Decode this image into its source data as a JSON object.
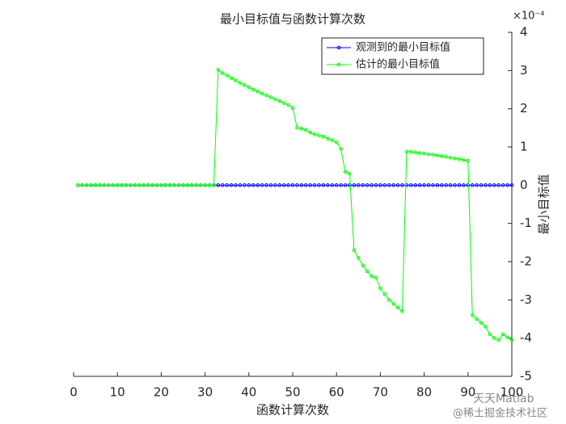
{
  "chart_data": {
    "type": "line",
    "title": "最小目标值与函数计算次数",
    "xlabel": "函数计算次数",
    "ylabel": "最小目标值",
    "y_exponent_label": "×10⁻⁴",
    "x": [
      1,
      2,
      3,
      4,
      5,
      6,
      7,
      8,
      9,
      10,
      11,
      12,
      13,
      14,
      15,
      16,
      17,
      18,
      19,
      20,
      21,
      22,
      23,
      24,
      25,
      26,
      27,
      28,
      29,
      30,
      31,
      32,
      33,
      34,
      35,
      36,
      37,
      38,
      39,
      40,
      41,
      42,
      43,
      44,
      45,
      46,
      47,
      48,
      49,
      50,
      51,
      52,
      53,
      54,
      55,
      56,
      57,
      58,
      59,
      60,
      61,
      62,
      63,
      64,
      65,
      66,
      67,
      68,
      69,
      70,
      71,
      72,
      73,
      74,
      75,
      76,
      77,
      78,
      79,
      80,
      81,
      82,
      83,
      84,
      85,
      86,
      87,
      88,
      89,
      90,
      91,
      92,
      93,
      94,
      95,
      96,
      97,
      98,
      99,
      100
    ],
    "series": [
      {
        "name": "观测到的最小目标值",
        "color": "#0000ff",
        "values": [
          0,
          0,
          0,
          0,
          0,
          0,
          0,
          0,
          0,
          0,
          0,
          0,
          0,
          0,
          0,
          0,
          0,
          0,
          0,
          0,
          0,
          0,
          0,
          0,
          0,
          0,
          0,
          0,
          0,
          0,
          0,
          0,
          0,
          0,
          0,
          0,
          0,
          0,
          0,
          0,
          0,
          0,
          0,
          0,
          0,
          0,
          0,
          0,
          0,
          0,
          0,
          0,
          0,
          0,
          0,
          0,
          0,
          0,
          0,
          0,
          0,
          0,
          0,
          0,
          0,
          0,
          0,
          0,
          0,
          0,
          0,
          0,
          0,
          0,
          0,
          0,
          0,
          0,
          0,
          0,
          0,
          0,
          0,
          0,
          0,
          0,
          0,
          0,
          0,
          0,
          0,
          0,
          0,
          0,
          0,
          0,
          0,
          0,
          0,
          0
        ]
      },
      {
        "name": "估计的最小目标值",
        "color": "#00ff00",
        "values": [
          0,
          0,
          0,
          0,
          0,
          0,
          0,
          0,
          0,
          0,
          0,
          0,
          0,
          0,
          0,
          0,
          0,
          0,
          0,
          0,
          0,
          0,
          0,
          0,
          0,
          0,
          0,
          0,
          0,
          0,
          0,
          0,
          3.02,
          2.93,
          2.87,
          2.8,
          2.74,
          2.68,
          2.62,
          2.56,
          2.5,
          2.45,
          2.4,
          2.35,
          2.3,
          2.25,
          2.2,
          2.15,
          2.1,
          2.02,
          1.5,
          1.48,
          1.45,
          1.38,
          1.33,
          1.3,
          1.27,
          1.22,
          1.18,
          1.12,
          0.95,
          0.35,
          0.3,
          -1.7,
          -1.9,
          -2.1,
          -2.25,
          -2.38,
          -2.42,
          -2.7,
          -2.85,
          -3.0,
          -3.1,
          -3.2,
          -3.3,
          0.88,
          0.87,
          0.86,
          0.84,
          0.83,
          0.81,
          0.8,
          0.78,
          0.76,
          0.74,
          0.72,
          0.7,
          0.68,
          0.66,
          0.64,
          -3.4,
          -3.5,
          -3.6,
          -3.7,
          -3.9,
          -4.0,
          -4.05,
          -3.9,
          -3.98,
          -4.05
        ]
      }
    ],
    "xlim": [
      0,
      100
    ],
    "xticks": [
      0,
      10,
      20,
      30,
      40,
      50,
      60,
      70,
      80,
      90,
      100
    ],
    "ylim": [
      -5,
      4
    ],
    "yticks": [
      4,
      3,
      2,
      1,
      0,
      -1,
      -2,
      -3,
      -4,
      -5
    ],
    "y_axis_side": "right",
    "legend": "upper right",
    "marker": "circle"
  },
  "watermark": {
    "line1": "天天Matlab",
    "line2": "@稀土掘金技术社区"
  }
}
